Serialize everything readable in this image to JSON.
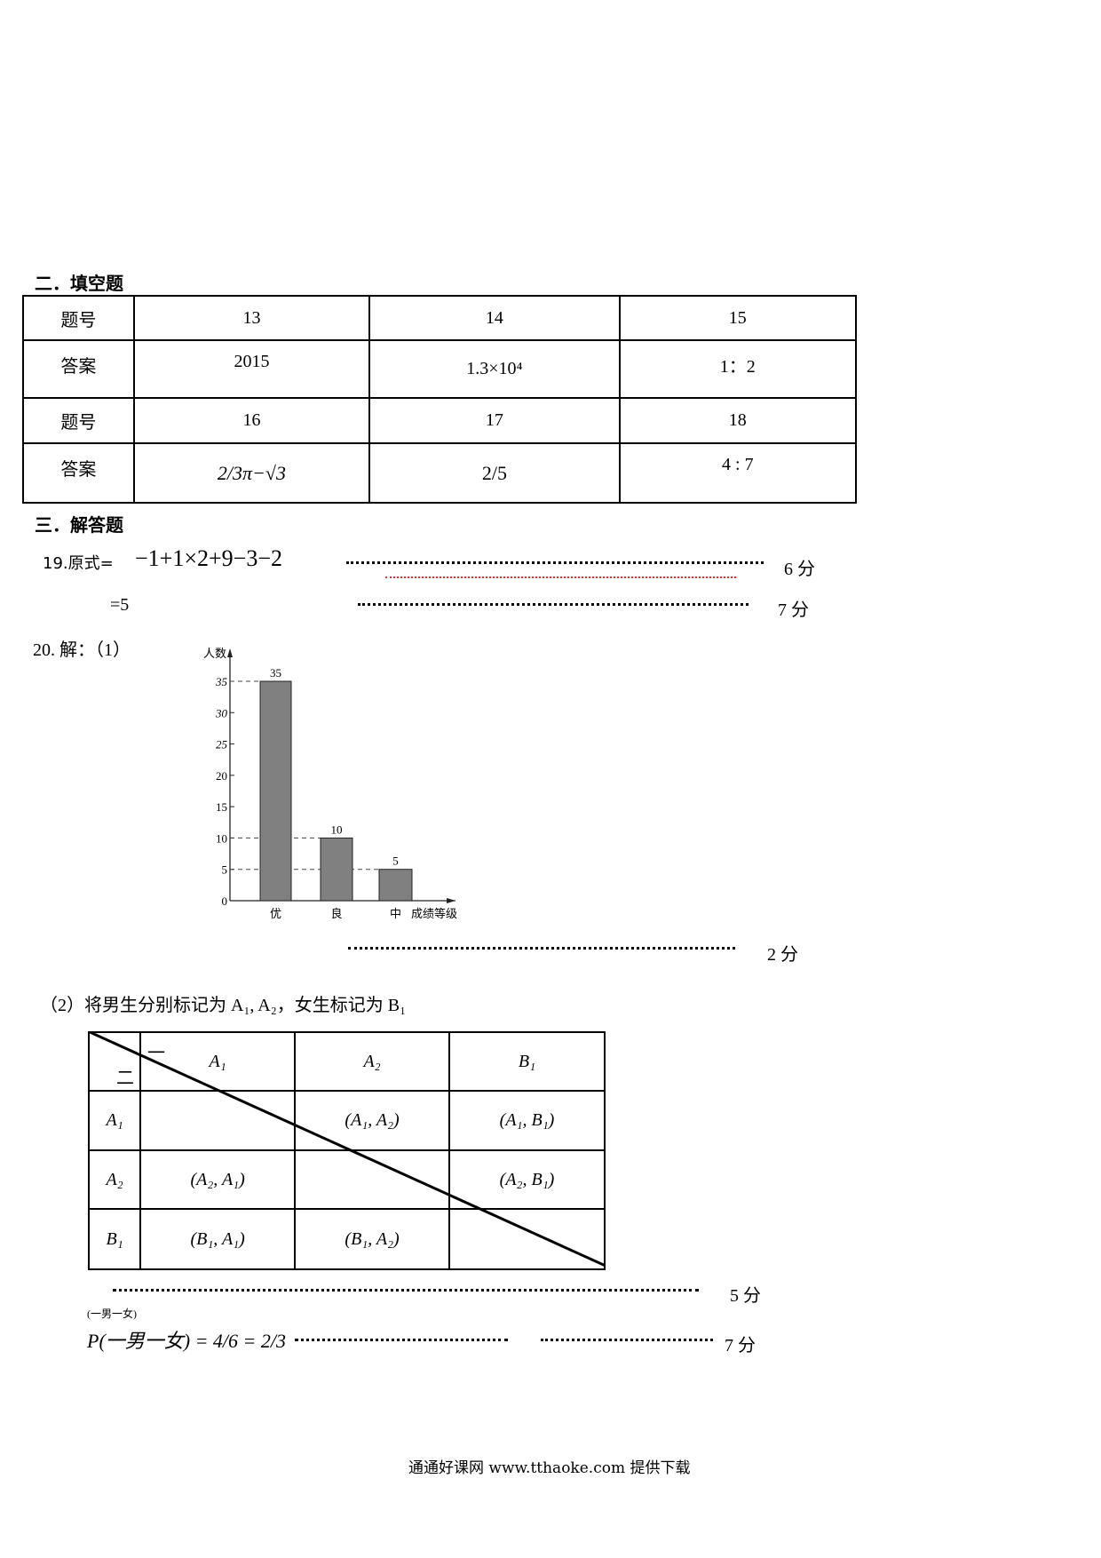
{
  "section2": {
    "heading": "二．填空题",
    "rows": [
      {
        "label": "题号",
        "cells": [
          "13",
          "14",
          "15"
        ]
      },
      {
        "label": "答案",
        "cells": [
          "2015",
          "1.3×10⁴",
          "1：2"
        ]
      },
      {
        "label": "题号",
        "cells": [
          "16",
          "17",
          "18"
        ]
      },
      {
        "label": "答案",
        "cells": [
          "2/3π−√3",
          "2/5",
          "4 : 7"
        ]
      }
    ]
  },
  "section3": {
    "heading": "三．解答题",
    "q19": {
      "line1": "19.原式=",
      "expr1": "−1+1×2+9−3−2",
      "score1": "6 分",
      "line2": "=5",
      "score2": "7 分"
    },
    "q20": {
      "intro": "20. 解：（1）",
      "score_chart": "2 分",
      "part2_text": "（2）将男生分别标记为 A₁, A₂，女生标记为 B₁",
      "table": {
        "corner_top": "一",
        "corner_bottom": "二",
        "col_headers": [
          "A₁",
          "A₂",
          "B₁"
        ],
        "row_headers": [
          "A₁",
          "A₂",
          "B₁"
        ],
        "cells": [
          [
            "",
            "(A₁, A₂)",
            "(A₁, B₁)"
          ],
          [
            "(A₂, A₁)",
            "",
            "(A₂, B₁)"
          ],
          [
            "(B₁, A₁)",
            "(B₁, A₂)",
            ""
          ]
        ]
      },
      "score_table": "5 分",
      "probability": "P(一男一女) = 4/6 = 2/3",
      "prob_sub": "(一男一女)",
      "score_prob": "7 分"
    }
  },
  "chart_data": {
    "type": "bar",
    "categories": [
      "优",
      "良",
      "中"
    ],
    "values": [
      35,
      10,
      5
    ],
    "ylabel": "人数",
    "xlabel": "成绩等级",
    "yticks": [
      "0",
      "5",
      "10",
      "15",
      "20",
      "25",
      "30",
      "35"
    ],
    "ylim": [
      0,
      35
    ],
    "data_labels": [
      "35",
      "10",
      "5"
    ],
    "bar_color": "#808080",
    "dashed_reference_lines": [
      35,
      10,
      5
    ]
  },
  "footer": "通通好课网 www.tthaoke.com 提供下载"
}
